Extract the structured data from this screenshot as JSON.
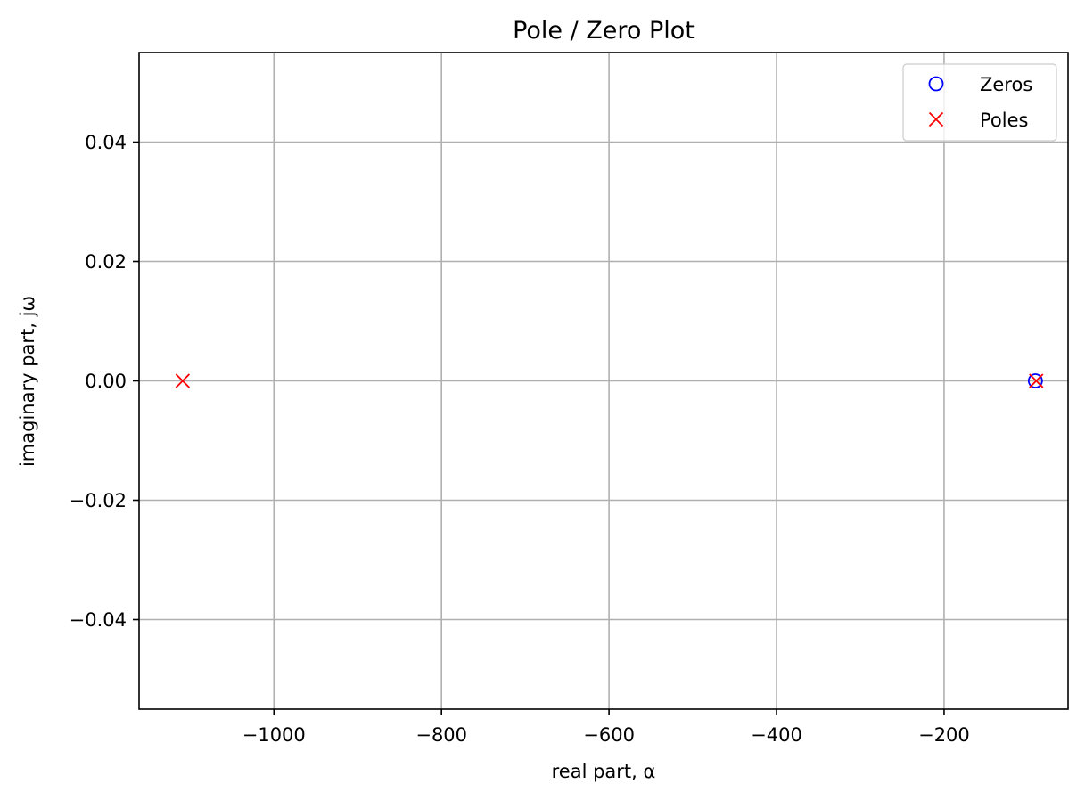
{
  "chart_data": {
    "type": "scatter",
    "title": "Pole / Zero Plot",
    "xlabel": "real part, α",
    "ylabel": "imaginary part, jω",
    "xlim": [
      -1161,
      -52
    ],
    "ylim": [
      -0.055,
      0.055
    ],
    "xticks": [
      -1000,
      -800,
      -600,
      -400,
      -200
    ],
    "xtick_labels": [
      "−1000",
      "−800",
      "−600",
      "−400",
      "−200"
    ],
    "yticks": [
      0.04,
      0.02,
      0.0,
      -0.02,
      -0.04
    ],
    "ytick_labels": [
      "0.04",
      "0.02",
      "0.00",
      "−0.02",
      "−0.04"
    ],
    "grid": true,
    "legend_position": "top-right",
    "series": [
      {
        "name": "Zeros",
        "marker": "circle",
        "color": "#0000ff",
        "points": [
          {
            "x": -91,
            "y": 0
          }
        ]
      },
      {
        "name": "Poles",
        "marker": "x",
        "color": "#ff0000",
        "points": [
          {
            "x": -1109,
            "y": 0
          },
          {
            "x": -90,
            "y": 0
          }
        ]
      }
    ]
  }
}
